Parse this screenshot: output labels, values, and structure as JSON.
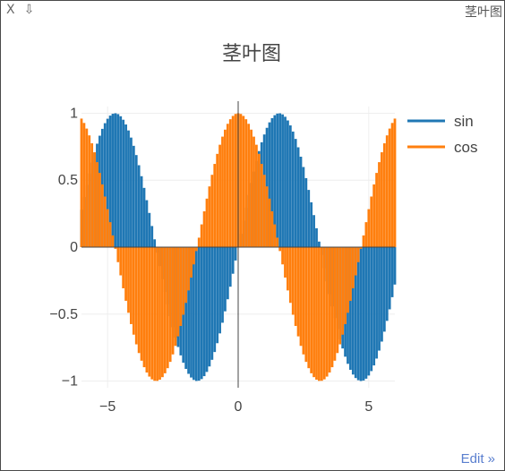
{
  "toolbar": {
    "close_label": "X",
    "download_label": "⇩"
  },
  "tab": {
    "label": "茎叶图"
  },
  "edit_link": {
    "label": "Edit »"
  },
  "colors": {
    "sin": "#1f77b4",
    "cos": "#ff7f0e",
    "grid": "#eeeeee",
    "axis": "#444444",
    "text": "#444444"
  },
  "chart_data": {
    "type": "bar",
    "title": "茎叶图",
    "xlabel": "",
    "ylabel": "",
    "xlim": [
      -6,
      6
    ],
    "ylim": [
      -1.05,
      1.05
    ],
    "xticks": [
      -5,
      0,
      5
    ],
    "xtick_labels": [
      "−5",
      "0",
      "5"
    ],
    "yticks": [
      -1,
      -0.5,
      0,
      0.5,
      1
    ],
    "ytick_labels": [
      "−1",
      "−0.5",
      "0",
      "0.5",
      "1"
    ],
    "grid": true,
    "legend_position": "top-right",
    "series": [
      {
        "name": "sin",
        "function": "sin(x)",
        "x_start": -6,
        "x_end": 6,
        "x_step": 0.1
      },
      {
        "name": "cos",
        "function": "cos(x)",
        "x_start": -6,
        "x_end": 6,
        "x_step": 0.1
      }
    ]
  }
}
